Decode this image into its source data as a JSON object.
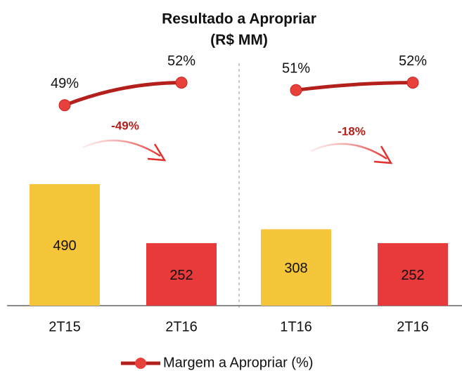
{
  "chart_data": {
    "type": "bar",
    "title": "Resultado a Apropriar",
    "subtitle": "(R$ MM)",
    "legend": "Margem a Apropriar (%)",
    "line_color": "#b3201c",
    "marker_color": "#e8403a",
    "panels": [
      {
        "categories": [
          "2T15",
          "2T16"
        ],
        "values": [
          490,
          252
        ],
        "colors": [
          "#f5c53a",
          "#e83a3a"
        ],
        "line_values": [
          49,
          52
        ],
        "value_labels": [
          "49%",
          "52%"
        ],
        "change_label": "-49%"
      },
      {
        "categories": [
          "1T16",
          "2T16"
        ],
        "values": [
          308,
          252
        ],
        "colors": [
          "#f5c53a",
          "#e83a3a"
        ],
        "line_values": [
          51,
          52
        ],
        "value_labels": [
          "51%",
          "52%"
        ],
        "change_label": "-18%"
      }
    ]
  }
}
